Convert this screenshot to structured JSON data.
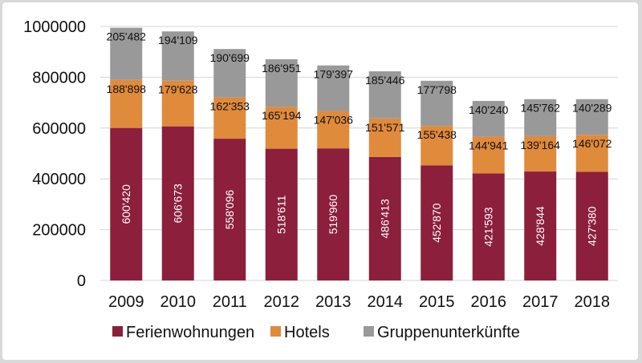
{
  "chart_data": {
    "type": "bar",
    "stacked": true,
    "orientation": "vertical",
    "categories": [
      "2009",
      "2010",
      "2011",
      "2012",
      "2013",
      "2014",
      "2015",
      "2016",
      "2017",
      "2018"
    ],
    "series": [
      {
        "name": "Ferienwohnungen",
        "color": "#8b1f3c",
        "values": [
          600420,
          606673,
          558096,
          518611,
          519960,
          486413,
          452870,
          421593,
          428844,
          427380
        ],
        "labels": [
          "600'420",
          "606'673",
          "558'096",
          "518'611",
          "519'960",
          "486'413",
          "452'870",
          "421'593",
          "428'844",
          "427'380"
        ]
      },
      {
        "name": "Hotels",
        "color": "#e08a3c",
        "values": [
          188898,
          179628,
          162353,
          165194,
          147036,
          151571,
          155438,
          144941,
          139164,
          146072
        ],
        "labels": [
          "188'898",
          "179'628",
          "162'353",
          "165'194",
          "147'036",
          "151'571",
          "155'438",
          "144'941",
          "139'164",
          "146'072"
        ]
      },
      {
        "name": "Gruppenunterkünfte",
        "color": "#999999",
        "values": [
          205482,
          194109,
          190699,
          186951,
          179397,
          185446,
          177798,
          140240,
          145762,
          140289
        ],
        "labels": [
          "205'482",
          "194'109",
          "190'699",
          "186'951",
          "179'397",
          "185'446",
          "177'798",
          "140'240",
          "145'762",
          "140'289"
        ]
      }
    ],
    "yticks": [
      0,
      200000,
      400000,
      600000,
      800000,
      1000000
    ],
    "ytick_labels": [
      "0",
      "200000",
      "400000",
      "600000",
      "800000",
      "1000000"
    ],
    "ylim": [
      0,
      1000000
    ],
    "grid": true,
    "legend_position": "bottom"
  }
}
